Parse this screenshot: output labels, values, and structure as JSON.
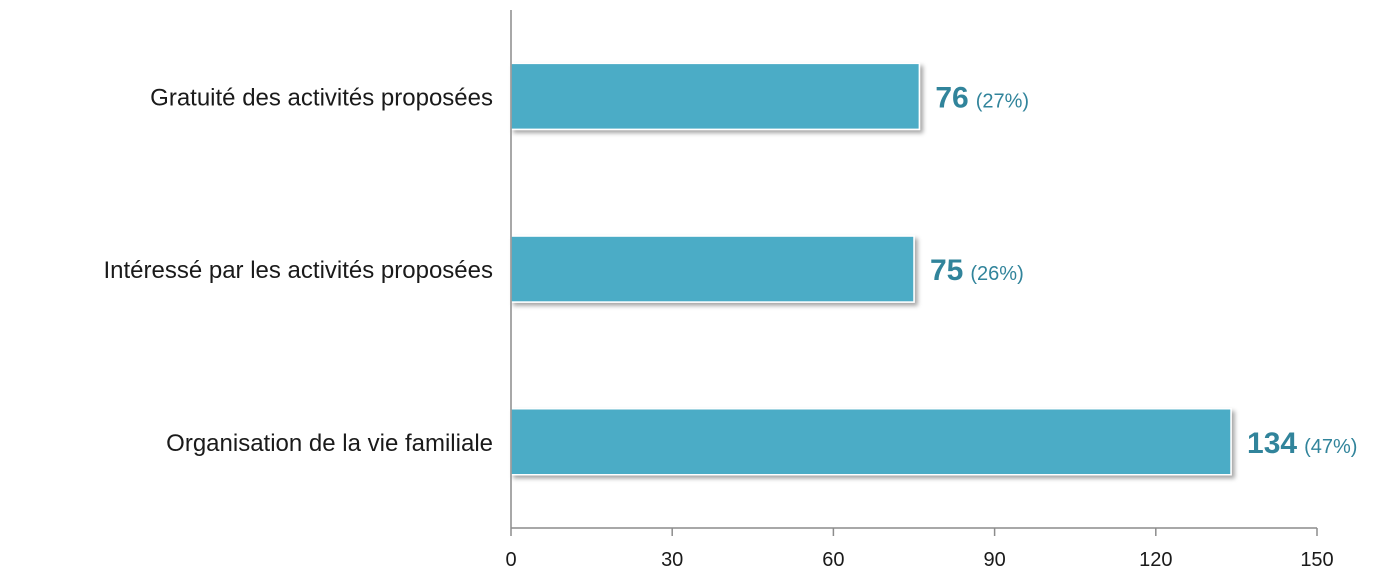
{
  "chart_data": {
    "type": "bar",
    "orientation": "horizontal",
    "categories": [
      "Gratuité des activités proposées",
      "Intéressé par les activités proposées",
      "Organisation de la vie familiale"
    ],
    "values": [
      76,
      75,
      134
    ],
    "percent_labels": [
      "(27%)",
      "(26%)",
      "(47%)"
    ],
    "xlim": [
      0,
      150
    ],
    "xticks": [
      "0",
      "30",
      "60",
      "90",
      "120",
      "150"
    ],
    "xtick_values": [
      0,
      30,
      60,
      90,
      120,
      150
    ],
    "grid": false,
    "legend": "none",
    "title": "",
    "xlabel": "",
    "ylabel": ""
  },
  "colors": {
    "bar": "#4bacc6",
    "bar_edge": "#ffffff",
    "value_label": "#31849b",
    "axis": "#8c8c8c"
  }
}
